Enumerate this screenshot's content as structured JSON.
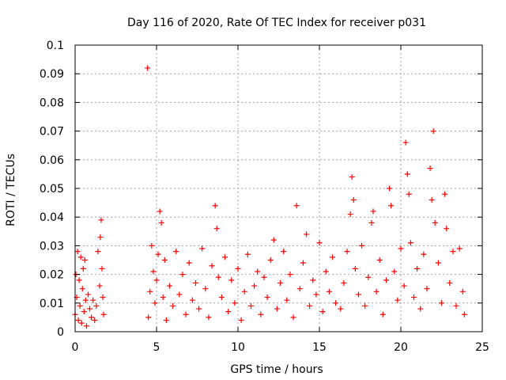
{
  "chart_data": {
    "type": "scatter",
    "title": "Day 116 of 2020, Rate Of TEC Index for receiver p031",
    "xlabel": "GPS time / hours",
    "ylabel": "ROTI / TECUs",
    "xlim": [
      0,
      25
    ],
    "ylim": [
      0,
      0.1
    ],
    "x_ticks": [
      0,
      5,
      10,
      15,
      20,
      25
    ],
    "x_tick_labels": [
      "0",
      "5",
      "10",
      "15",
      "20",
      "25"
    ],
    "y_ticks": [
      0,
      0.01,
      0.02,
      0.03,
      0.04,
      0.05,
      0.06,
      0.07,
      0.08,
      0.09,
      0.1
    ],
    "y_tick_labels": [
      "0",
      "0.01",
      "0.02",
      "0.03",
      "0.04",
      "0.05",
      "0.06",
      "0.07",
      "0.08",
      "0.09",
      "0.1"
    ],
    "grid": true,
    "marker": "+",
    "series": [
      {
        "name": "ROTI",
        "color": "#ff0000",
        "points": [
          [
            0.0,
            0.006
          ],
          [
            0.05,
            0.02
          ],
          [
            0.1,
            0.012
          ],
          [
            0.15,
            0.028
          ],
          [
            0.2,
            0.004
          ],
          [
            0.25,
            0.018
          ],
          [
            0.3,
            0.009
          ],
          [
            0.35,
            0.026
          ],
          [
            0.4,
            0.003
          ],
          [
            0.45,
            0.015
          ],
          [
            0.5,
            0.022
          ],
          [
            0.55,
            0.007
          ],
          [
            0.6,
            0.025
          ],
          [
            0.65,
            0.011
          ],
          [
            0.7,
            0.002
          ],
          [
            0.8,
            0.013
          ],
          [
            0.9,
            0.008
          ],
          [
            1.0,
            0.005
          ],
          [
            1.1,
            0.011
          ],
          [
            1.2,
            0.004
          ],
          [
            1.3,
            0.009
          ],
          [
            1.4,
            0.028
          ],
          [
            1.5,
            0.016
          ],
          [
            1.55,
            0.033
          ],
          [
            1.6,
            0.039
          ],
          [
            1.65,
            0.022
          ],
          [
            1.7,
            0.012
          ],
          [
            1.75,
            0.006
          ],
          [
            4.45,
            0.092
          ],
          [
            4.5,
            0.005
          ],
          [
            4.6,
            0.014
          ],
          [
            4.7,
            0.03
          ],
          [
            4.8,
            0.021
          ],
          [
            4.9,
            0.01
          ],
          [
            5.0,
            0.018
          ],
          [
            5.1,
            0.027
          ],
          [
            5.2,
            0.042
          ],
          [
            5.3,
            0.038
          ],
          [
            5.4,
            0.012
          ],
          [
            5.5,
            0.025
          ],
          [
            5.6,
            0.004
          ],
          [
            5.8,
            0.016
          ],
          [
            6.0,
            0.009
          ],
          [
            6.2,
            0.028
          ],
          [
            6.4,
            0.013
          ],
          [
            6.6,
            0.02
          ],
          [
            6.8,
            0.006
          ],
          [
            7.0,
            0.024
          ],
          [
            7.2,
            0.011
          ],
          [
            7.4,
            0.017
          ],
          [
            7.6,
            0.008
          ],
          [
            7.8,
            0.029
          ],
          [
            8.0,
            0.015
          ],
          [
            8.2,
            0.005
          ],
          [
            8.4,
            0.023
          ],
          [
            8.6,
            0.044
          ],
          [
            8.7,
            0.036
          ],
          [
            8.8,
            0.019
          ],
          [
            9.0,
            0.012
          ],
          [
            9.2,
            0.026
          ],
          [
            9.4,
            0.007
          ],
          [
            9.6,
            0.018
          ],
          [
            9.8,
            0.01
          ],
          [
            10.0,
            0.022
          ],
          [
            10.2,
            0.004
          ],
          [
            10.4,
            0.014
          ],
          [
            10.6,
            0.027
          ],
          [
            10.8,
            0.009
          ],
          [
            11.0,
            0.016
          ],
          [
            11.2,
            0.021
          ],
          [
            11.4,
            0.006
          ],
          [
            11.6,
            0.019
          ],
          [
            11.8,
            0.012
          ],
          [
            12.0,
            0.025
          ],
          [
            12.2,
            0.032
          ],
          [
            12.4,
            0.008
          ],
          [
            12.6,
            0.017
          ],
          [
            12.8,
            0.028
          ],
          [
            13.0,
            0.011
          ],
          [
            13.2,
            0.02
          ],
          [
            13.4,
            0.005
          ],
          [
            13.6,
            0.044
          ],
          [
            13.8,
            0.015
          ],
          [
            14.0,
            0.024
          ],
          [
            14.2,
            0.034
          ],
          [
            14.4,
            0.009
          ],
          [
            14.6,
            0.018
          ],
          [
            14.8,
            0.013
          ],
          [
            15.0,
            0.031
          ],
          [
            15.2,
            0.007
          ],
          [
            15.4,
            0.021
          ],
          [
            15.6,
            0.014
          ],
          [
            15.8,
            0.026
          ],
          [
            16.0,
            0.01
          ],
          [
            16.3,
            0.008
          ],
          [
            16.5,
            0.017
          ],
          [
            16.7,
            0.028
          ],
          [
            16.9,
            0.041
          ],
          [
            17.0,
            0.054
          ],
          [
            17.1,
            0.046
          ],
          [
            17.2,
            0.022
          ],
          [
            17.4,
            0.013
          ],
          [
            17.6,
            0.03
          ],
          [
            17.8,
            0.009
          ],
          [
            18.0,
            0.019
          ],
          [
            18.2,
            0.038
          ],
          [
            18.3,
            0.042
          ],
          [
            18.5,
            0.014
          ],
          [
            18.7,
            0.025
          ],
          [
            18.9,
            0.006
          ],
          [
            19.1,
            0.018
          ],
          [
            19.3,
            0.05
          ],
          [
            19.4,
            0.044
          ],
          [
            19.6,
            0.021
          ],
          [
            19.8,
            0.011
          ],
          [
            20.0,
            0.029
          ],
          [
            20.2,
            0.016
          ],
          [
            20.3,
            0.066
          ],
          [
            20.4,
            0.055
          ],
          [
            20.5,
            0.048
          ],
          [
            20.6,
            0.031
          ],
          [
            20.8,
            0.012
          ],
          [
            21.0,
            0.022
          ],
          [
            21.2,
            0.008
          ],
          [
            21.4,
            0.027
          ],
          [
            21.6,
            0.015
          ],
          [
            21.8,
            0.057
          ],
          [
            21.9,
            0.046
          ],
          [
            22.0,
            0.07
          ],
          [
            22.1,
            0.038
          ],
          [
            22.3,
            0.024
          ],
          [
            22.5,
            0.01
          ],
          [
            22.7,
            0.048
          ],
          [
            22.8,
            0.036
          ],
          [
            23.0,
            0.017
          ],
          [
            23.2,
            0.028
          ],
          [
            23.4,
            0.009
          ],
          [
            23.6,
            0.029
          ],
          [
            23.8,
            0.014
          ],
          [
            23.9,
            0.006
          ]
        ]
      }
    ]
  }
}
